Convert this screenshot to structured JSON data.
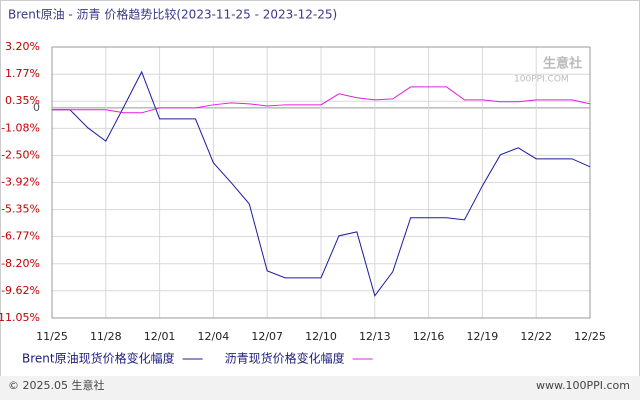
{
  "chart_data": {
    "type": "line",
    "title": "Brent原油 - 沥青 价格趋势比较(2023-11-25 - 2023-12-25)",
    "watermark": {
      "name": "生意社",
      "site": "100PPI.COM"
    },
    "categories": [
      "11/25",
      null,
      null,
      "11/28",
      null,
      null,
      "12/01",
      null,
      null,
      "12/04",
      null,
      null,
      "12/07",
      null,
      null,
      "12/10",
      null,
      null,
      "12/13",
      null,
      null,
      "12/16",
      null,
      null,
      "12/19",
      null,
      null,
      "12/22",
      null,
      null,
      "12/25"
    ],
    "series": [
      {
        "name": "Brent原油现货价格变化幅度",
        "color": "#1c1ca0",
        "values": [
          -0.1,
          -0.1,
          -1.05,
          -1.75,
          0.05,
          1.89,
          -0.58,
          -0.58,
          -0.58,
          -2.89,
          -3.94,
          -5.05,
          -8.57,
          -8.94,
          -8.94,
          -8.94,
          -6.73,
          -6.52,
          -9.88,
          -8.62,
          -5.78,
          -5.78,
          -5.78,
          -5.89,
          -4.1,
          -2.47,
          -2.1,
          -2.68,
          -2.68,
          -2.68,
          -3.1
        ]
      },
      {
        "name": "沥青现货价格变化幅度",
        "color": "#e020e0",
        "values": [
          -0.1,
          -0.1,
          -0.1,
          -0.1,
          -0.26,
          -0.26,
          0.0,
          0.0,
          0.0,
          0.16,
          0.26,
          0.21,
          0.1,
          0.16,
          0.16,
          0.16,
          0.74,
          0.53,
          0.42,
          0.47,
          1.1,
          1.1,
          1.1,
          0.42,
          0.42,
          0.32,
          0.32,
          0.42,
          0.42,
          0.42,
          0.21
        ]
      }
    ],
    "ylim": [
      -11.05,
      3.2
    ],
    "yticks": [
      {
        "value": 3.2,
        "label": "3.20%"
      },
      {
        "value": 1.77,
        "label": "1.77%"
      },
      {
        "value": 0.35,
        "label": "0.35%"
      },
      {
        "value": 0,
        "label": "0"
      },
      {
        "value": -1.08,
        "label": "-1.08%"
      },
      {
        "value": -2.5,
        "label": "-2.50%"
      },
      {
        "value": -3.92,
        "label": "-3.92%"
      },
      {
        "value": -5.35,
        "label": "-5.35%"
      },
      {
        "value": -6.77,
        "label": "-6.77%"
      },
      {
        "value": -8.2,
        "label": "-8.20%"
      },
      {
        "value": -9.62,
        "label": "-9.62%"
      },
      {
        "value": -11.05,
        "label": "-11.05%"
      }
    ],
    "grid": true,
    "footer": {
      "left": "© 2025.05 生意社",
      "right": "www.100PPI.com"
    }
  }
}
